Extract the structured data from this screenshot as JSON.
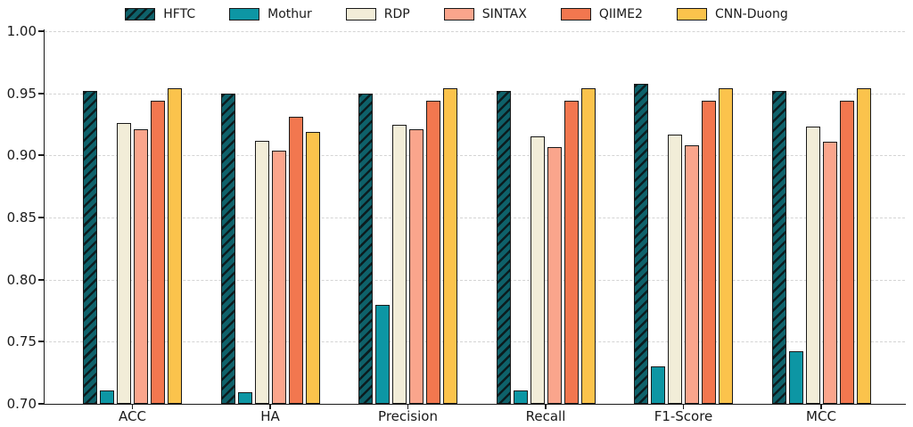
{
  "chart_data": {
    "type": "bar",
    "title": "",
    "xlabel": "",
    "ylabel": "",
    "categories": [
      "ACC",
      "HA",
      "Precision",
      "Recall",
      "F1-Score",
      "MCC"
    ],
    "series": [
      {
        "name": "HFTC",
        "color": "#0E616A",
        "hatch": "diagonal-forward",
        "values": [
          0.952,
          0.95,
          0.95,
          0.952,
          0.958,
          0.952
        ]
      },
      {
        "name": "Mothur",
        "color": "#0D96A4",
        "hatch": "none",
        "values": [
          0.711,
          0.709,
          0.78,
          0.711,
          0.73,
          0.742
        ]
      },
      {
        "name": "RDP",
        "color": "#F2EDD8",
        "hatch": "none",
        "values": [
          0.926,
          0.912,
          0.925,
          0.915,
          0.917,
          0.923
        ]
      },
      {
        "name": "SINTAX",
        "color": "#FAA58C",
        "hatch": "none",
        "values": [
          0.921,
          0.904,
          0.921,
          0.907,
          0.908,
          0.911
        ]
      },
      {
        "name": "QIIME2",
        "color": "#F2774F",
        "hatch": "none",
        "values": [
          0.944,
          0.931,
          0.944,
          0.944,
          0.944,
          0.944
        ]
      },
      {
        "name": "CNN-Duong",
        "color": "#FBC34C",
        "hatch": "none",
        "values": [
          0.954,
          0.919,
          0.954,
          0.954,
          0.954,
          0.954
        ]
      }
    ],
    "ylim": [
      0.7,
      1.0
    ],
    "yticks": [
      0.7,
      0.75,
      0.8,
      0.85,
      0.9,
      0.95,
      1.0
    ],
    "grid": "horizontal-dashed",
    "legend_position": "top",
    "bar_edge_color": "#1a1a1a",
    "hatch_line_color": "#0b1c1f"
  }
}
